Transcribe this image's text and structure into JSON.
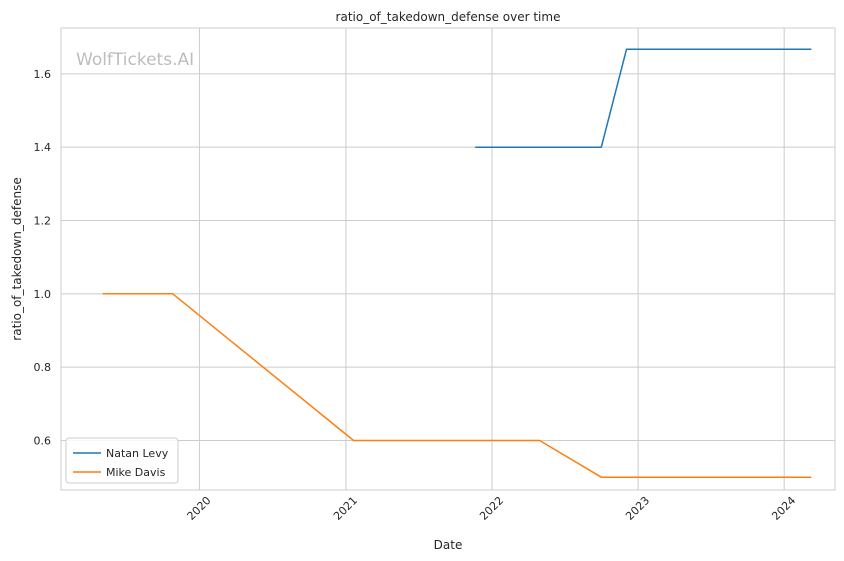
{
  "chart_data": {
    "type": "line",
    "title": "ratio_of_takedown_defense over time",
    "xlabel": "Date",
    "ylabel": "ratio_of_takedown_defense",
    "watermark": "WolfTickets.AI",
    "x_ticks": [
      "2020",
      "2021",
      "2022",
      "2023",
      "2024"
    ],
    "y_ticks": [
      "0.6",
      "0.8",
      "1.0",
      "1.2",
      "1.4",
      "1.6"
    ],
    "xlim": [
      "2019-01-20",
      "2024-05-07"
    ],
    "ylim": [
      0.465,
      1.725
    ],
    "grid": true,
    "legend_position": "lower-left",
    "series": [
      {
        "name": "Natan Levy",
        "color": "#1f77b4",
        "points": [
          {
            "x": "2021-11-20",
            "y": 1.4
          },
          {
            "x": "2022-10-01",
            "y": 1.4
          },
          {
            "x": "2022-12-03",
            "y": 1.667
          },
          {
            "x": "2024-03-09",
            "y": 1.667
          }
        ]
      },
      {
        "name": "Mike Davis",
        "color": "#ff7f0e",
        "points": [
          {
            "x": "2019-05-04",
            "y": 1.0
          },
          {
            "x": "2019-10-26",
            "y": 1.0
          },
          {
            "x": "2021-01-20",
            "y": 0.6
          },
          {
            "x": "2022-04-30",
            "y": 0.6
          },
          {
            "x": "2022-10-01",
            "y": 0.5
          },
          {
            "x": "2024-03-09",
            "y": 0.5
          }
        ]
      }
    ]
  }
}
